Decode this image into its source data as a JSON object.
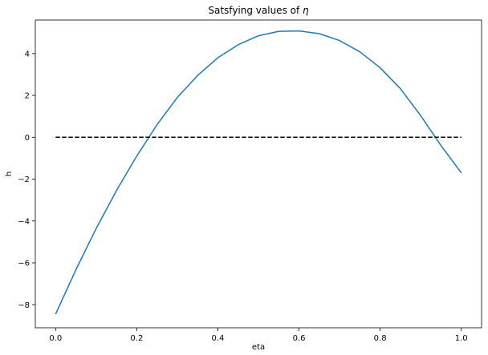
{
  "chart_data": {
    "type": "line",
    "title": "Satsfying values of ",
    "title_symbol": "η",
    "xlabel": "eta",
    "ylabel": "h",
    "xlim": [
      -0.05,
      1.05
    ],
    "ylim": [
      -9.1,
      5.6
    ],
    "xticks": [
      0.0,
      0.2,
      0.4,
      0.6,
      0.8,
      1.0
    ],
    "xtick_labels": [
      "0.0",
      "0.2",
      "0.4",
      "0.6",
      "0.8",
      "1.0"
    ],
    "yticks": [
      -8,
      -6,
      -4,
      -2,
      0,
      2,
      4
    ],
    "ytick_labels": [
      "−8",
      "−6",
      "−4",
      "−2",
      "0",
      "2",
      "4"
    ],
    "grid": false,
    "series": [
      {
        "color": "#1f77b4",
        "style": "solid",
        "x": [
          0.0,
          0.05,
          0.1,
          0.15,
          0.2,
          0.25,
          0.3,
          0.35,
          0.4,
          0.45,
          0.5,
          0.55,
          0.6,
          0.65,
          0.7,
          0.75,
          0.8,
          0.85,
          0.9,
          0.95,
          1.0
        ],
        "y": [
          -8.45,
          -6.33,
          -4.36,
          -2.55,
          -0.9,
          0.6,
          1.9,
          2.95,
          3.8,
          4.42,
          4.85,
          5.06,
          5.08,
          4.95,
          4.62,
          4.08,
          3.32,
          2.32,
          1.03,
          -0.4,
          -1.7
        ]
      },
      {
        "color": "#000000",
        "style": "dashed",
        "x": [
          0.0,
          1.0
        ],
        "y": [
          0,
          0
        ]
      }
    ]
  }
}
